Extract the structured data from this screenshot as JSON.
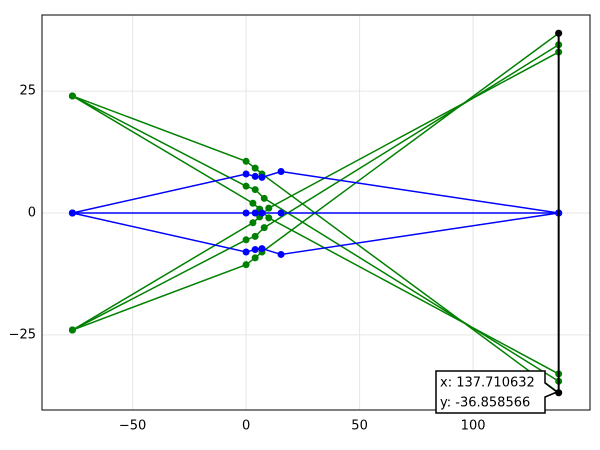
{
  "chart_data": {
    "type": "line",
    "xlim": [
      -89.9,
      151.5
    ],
    "ylim": [
      -40.4,
      40.6
    ],
    "xticks": [
      {
        "value": -50,
        "label": "−50"
      },
      0,
      50,
      100
    ],
    "yticks": [
      {
        "value": -25,
        "label": "−25"
      },
      0,
      25
    ],
    "grid": true,
    "series": [
      {
        "color": "#008000",
        "x": [
          -76.5,
          0,
          4,
          7,
          137.7
        ],
        "values": [
          24,
          10.6,
          9.2,
          8,
          -36.86
        ]
      },
      {
        "color": "#008000",
        "x": [
          -76.5,
          0,
          4,
          8,
          137.7
        ],
        "values": [
          24,
          5.5,
          4.8,
          3,
          -34.5
        ]
      },
      {
        "color": "#008000",
        "x": [
          -76.5,
          3,
          6,
          10,
          137.7
        ],
        "values": [
          24,
          2,
          0.8,
          -1,
          -33
        ]
      },
      {
        "color": "#008000",
        "x": [
          -76.5,
          0,
          4,
          7,
          137.7
        ],
        "values": [
          -24,
          -10.6,
          -9.2,
          -8,
          36.86
        ]
      },
      {
        "color": "#008000",
        "x": [
          -76.5,
          0,
          4,
          8,
          137.7
        ],
        "values": [
          -24,
          -5.5,
          -4.8,
          -3,
          34.5
        ]
      },
      {
        "color": "#008000",
        "x": [
          -76.5,
          3,
          6,
          10,
          137.7
        ],
        "values": [
          -24,
          -2,
          -0.8,
          1,
          33
        ]
      },
      {
        "color": "#0000ff",
        "x": [
          -76.5,
          0,
          4,
          7,
          15.4,
          137.7
        ],
        "values": [
          0,
          8,
          7.5,
          7.3,
          8.5,
          0
        ]
      },
      {
        "color": "#0000ff",
        "x": [
          -76.5,
          0,
          4,
          7,
          15.4,
          137.7
        ],
        "values": [
          0,
          0,
          0,
          0,
          0,
          0
        ]
      },
      {
        "color": "#0000ff",
        "x": [
          -76.5,
          0,
          4,
          7,
          15.4,
          137.7
        ],
        "values": [
          0,
          -8,
          -7.5,
          -7.3,
          -8.5,
          0
        ]
      },
      {
        "color": "#000000",
        "x": [
          137.7,
          137.7
        ],
        "values": [
          36.86,
          -36.86
        ]
      }
    ],
    "tooltip": [
      "x: 137.710632",
      "y: -36.858566"
    ]
  }
}
